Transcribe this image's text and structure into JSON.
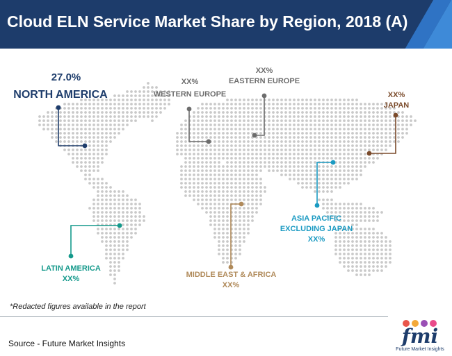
{
  "title": "Cloud ELN Service Market Share by Region, 2018 (A)",
  "regions": [
    {
      "value": "27.0%",
      "name": "NORTH AMERICA",
      "color": "#1d3c6b"
    },
    {
      "value": "XX%",
      "name": "WESTERN EUROPE",
      "color": "#6d6d6d"
    },
    {
      "value": "XX%",
      "name": "EASTERN EUROPE",
      "color": "#6d6d6d"
    },
    {
      "value": "XX%",
      "name": "JAPAN",
      "color": "#7a4a2a"
    },
    {
      "value": "XX%",
      "name": "ASIA PACIFIC EXCLUDING JAPAN",
      "color": "#1a9ac2"
    },
    {
      "value": "XX%",
      "name": "LATIN AMERICA",
      "color": "#14998b"
    },
    {
      "value": "XX%",
      "name": "MIDDLE EAST & AFRICA",
      "color": "#b08a5a"
    }
  ],
  "footnote": "*Redacted figures available in the report",
  "source": "Source - Future Market Insights",
  "logo": {
    "text": "fmi",
    "tagline": "Future Market Insights"
  }
}
